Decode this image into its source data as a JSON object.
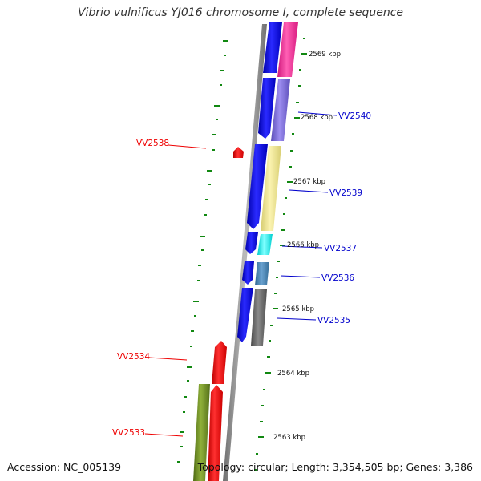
{
  "title": "Vibrio vulnificus YJ016 chromosome I, complete sequence",
  "footer": {
    "accession": "Accession: NC_005139",
    "summary": "Topology: circular; Length: 3,354,505 bp; Genes: 3,386"
  },
  "ticks": [
    "2569 kbp",
    "2568 kbp",
    "2567 kbp",
    "2566 kbp",
    "2565 kbp",
    "2564 kbp",
    "2563 kbp"
  ],
  "genes": [
    {
      "id": "VV2540",
      "side": "right",
      "color": "#0000cc"
    },
    {
      "id": "VV2539",
      "side": "right",
      "color": "#0000cc"
    },
    {
      "id": "VV2537",
      "side": "right",
      "color": "#0000cc"
    },
    {
      "id": "VV2536",
      "side": "right",
      "color": "#0000cc"
    },
    {
      "id": "VV2535",
      "side": "right",
      "color": "#0000cc"
    },
    {
      "id": "VV2538",
      "side": "left",
      "color": "#ee0000"
    },
    {
      "id": "VV2534",
      "side": "left",
      "color": "#ee0000"
    },
    {
      "id": "VV2533",
      "side": "left",
      "color": "#ee0000"
    }
  ],
  "colors": {
    "forward_strand": "#0000ee",
    "reverse_strand": "#ff0000",
    "backbone": "#888888",
    "gc_dashes": "#118811",
    "pink": "#ff2d9b",
    "slate_blue": "#7b68d6",
    "khaki": "#f0e68c",
    "cyan": "#00ffff",
    "steel_blue": "#4682b4",
    "dim_gray": "#6e6e6e",
    "olive": "#6b8e23"
  }
}
